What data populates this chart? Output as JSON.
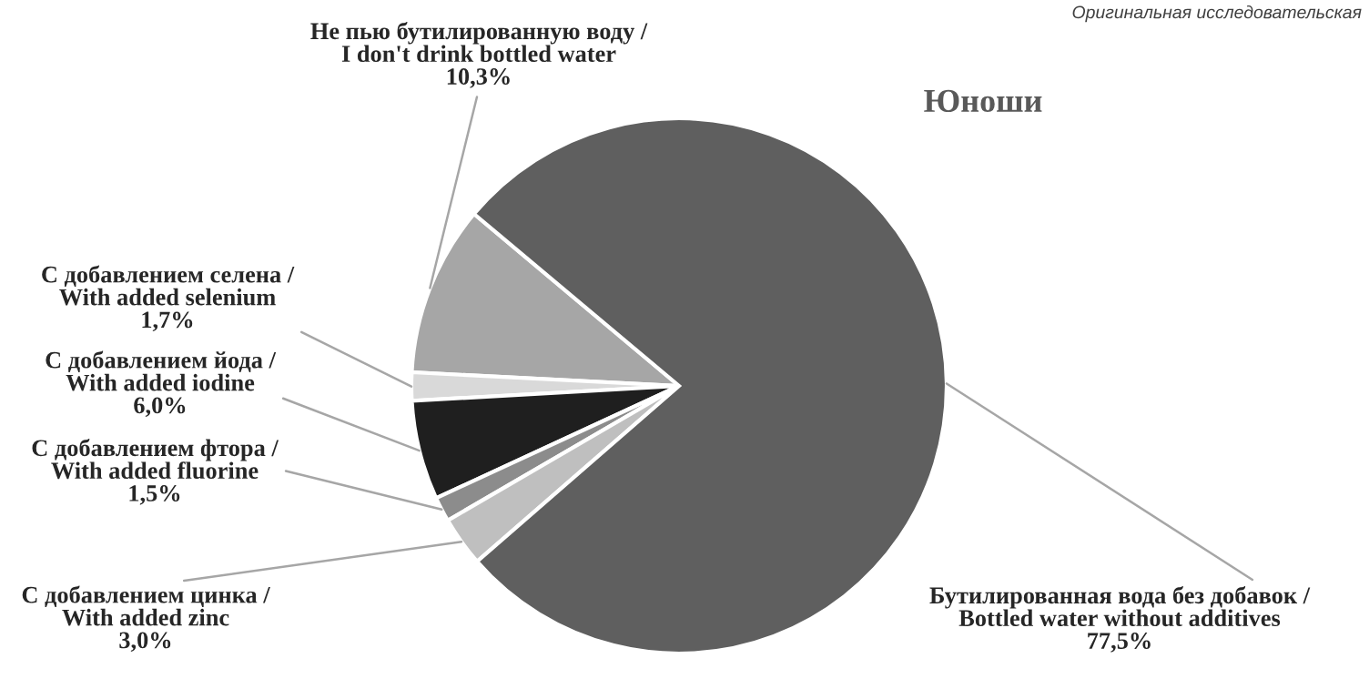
{
  "chart_data": {
    "type": "pie",
    "title": "Юноши",
    "categories": [
      "Не пью бутилированную воду / I don't drink bottled water",
      "С добавлением селена / With added selenium",
      "С добавлением йода / With added iodine",
      "С добавлением фтора / With added fluorine",
      "С добавлением цинка / With added zinc",
      "Бутилированная вода без добавок / Bottled water without additives"
    ],
    "values": [
      10.3,
      1.7,
      6.0,
      1.5,
      3.0,
      77.5
    ],
    "value_labels": [
      "10,3%",
      "1,7%",
      "6,0%",
      "1,5%",
      "3,0%",
      "77,5%"
    ],
    "colors": [
      "#a6a6a6",
      "#d9d9d9",
      "#1f1f1f",
      "#8c8c8c",
      "#bfbfbf",
      "#5f5f5f"
    ],
    "annotations": [
      "Оригинальная исследовательская"
    ]
  }
}
